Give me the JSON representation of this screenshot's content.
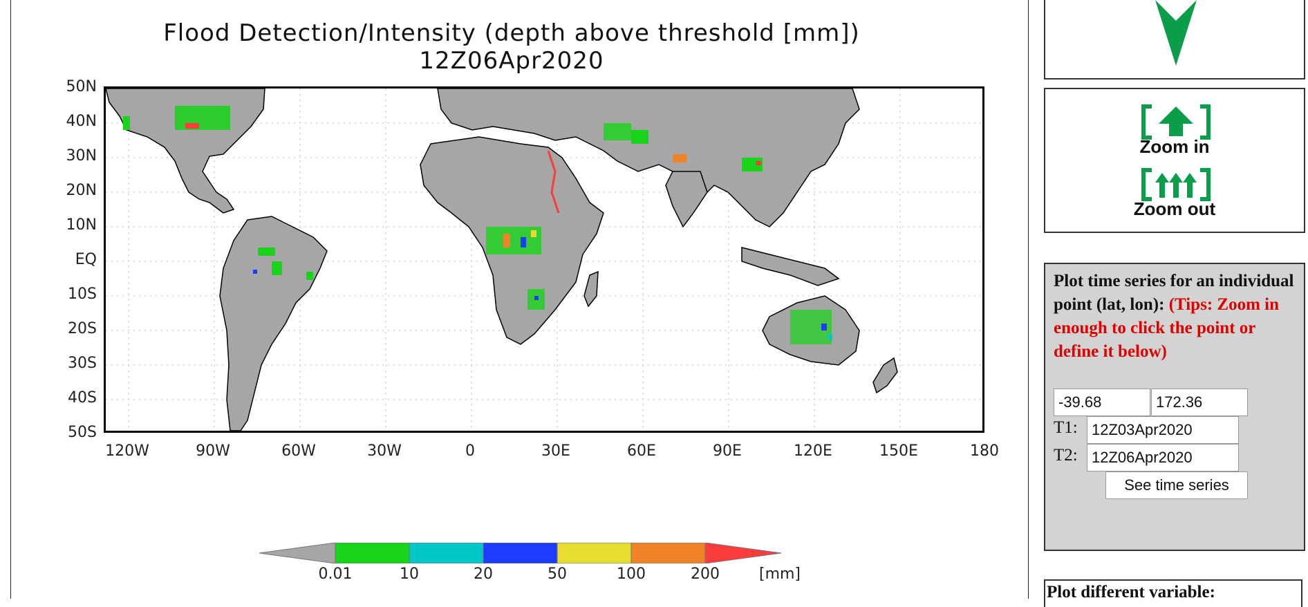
{
  "map": {
    "title_line1": "Flood Detection/Intensity (depth above threshold [mm])",
    "title_line2": "12Z06Apr2020",
    "lat_ticks": [
      "50N",
      "40N",
      "30N",
      "20N",
      "10N",
      "EQ",
      "10S",
      "20S",
      "30S",
      "40S",
      "50S"
    ],
    "lon_ticks": [
      "120W",
      "90W",
      "60W",
      "30W",
      "0",
      "30E",
      "60E",
      "90E",
      "120E",
      "150E",
      "180"
    ],
    "colorbar": {
      "colors": [
        "#a6a6a6",
        "#18d41a",
        "#00c8c8",
        "#1e3cff",
        "#e6dc32",
        "#f08228",
        "#fa3c3c"
      ],
      "labels": [
        "0.01",
        "10",
        "20",
        "50",
        "100",
        "200"
      ],
      "unit": "[mm]"
    }
  },
  "nav": {
    "zoom_in_label": "Zoom in",
    "zoom_out_label": "Zoom out",
    "arrow_color": "#0a9e4a"
  },
  "timeseries": {
    "heading": "Plot time series for an individual point (lat, lon):",
    "tips": "(Tips: Zoom in enough to click the point or define it below)",
    "lat_value": "-39.68",
    "lon_value": "172.36",
    "t1_label": "T1:",
    "t1_value": "12Z03Apr2020",
    "t2_label": "T2:",
    "t2_value": "12Z06Apr2020",
    "button_label": "See time series"
  },
  "variable_panel": {
    "heading": "Plot different variable:"
  }
}
